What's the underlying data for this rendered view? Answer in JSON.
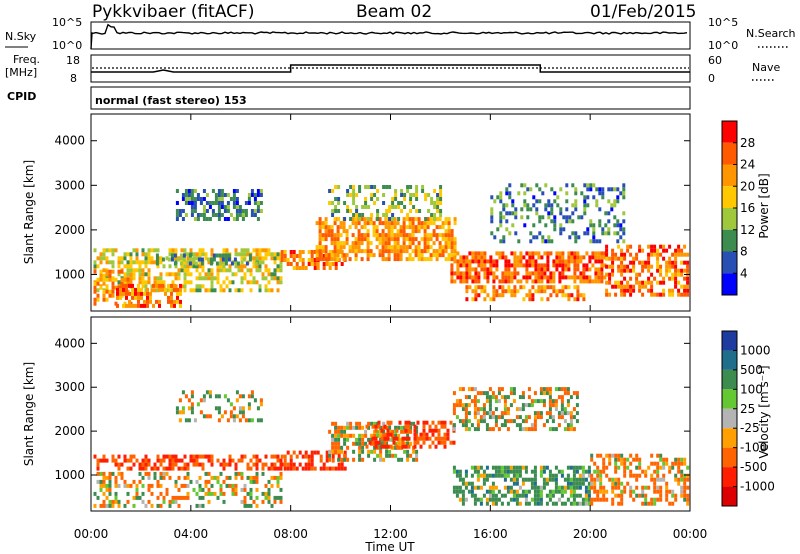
{
  "header": {
    "station": "Pykkvibaer (fitACF)",
    "beam": "Beam 02",
    "date": "01/Feb/2015"
  },
  "strips": {
    "nsky_label": "N.Sky",
    "nsky_ticks": [
      "10^5",
      "10^0"
    ],
    "nsearch_label": "N.Search",
    "nsearch_ticks": [
      "10^5",
      "10^0"
    ],
    "freq_label_1": "Freq.",
    "freq_label_2": "[MHz]",
    "freq_ticks": [
      "18",
      "8"
    ],
    "nave_label": "Nave",
    "nave_ticks": [
      "60",
      "0"
    ],
    "cpid_label": "CPID",
    "cpid_value": "normal (fast stereo) 153"
  },
  "icons": {
    "nsky_legend": "solid-line-legend",
    "nsearch_legend": "dotted-line-legend",
    "nave_legend": "dotted-line-legend"
  },
  "x_axis": {
    "label": "Time UT",
    "ticks": [
      "00:00",
      "04:00",
      "08:00",
      "12:00",
      "16:00",
      "20:00",
      "00:00"
    ]
  },
  "chart_data": [
    {
      "type": "heatmap",
      "panel": "power",
      "ylabel": "Slant Range [km]",
      "yticks": [
        "1000",
        "2000",
        "3000",
        "4000"
      ],
      "ylim": [
        180,
        4600
      ],
      "xlim_hours": [
        0,
        24
      ],
      "colorbar_label": "Power [dB]",
      "colorbar_ticks": [
        "28",
        "24",
        "20",
        "16",
        "12",
        "8",
        "4"
      ],
      "colorbar_colors": [
        "#ff0000",
        "#ff5a00",
        "#ff9600",
        "#ffc800",
        "#a0c83c",
        "#3c8c50",
        "#2850b4",
        "#0000ff"
      ],
      "regions": [
        {
          "t": [
            0.1,
            7.6
          ],
          "r": [
            600,
            1500
          ],
          "level": 17,
          "density": 0.55
        },
        {
          "t": [
            0.1,
            1.6
          ],
          "r": [
            300,
            1100
          ],
          "level": 22,
          "density": 0.6
        },
        {
          "t": [
            1.0,
            3.6
          ],
          "r": [
            250,
            700
          ],
          "level": 24,
          "density": 0.6
        },
        {
          "t": [
            2.6,
            6.6
          ],
          "r": [
            1200,
            1450
          ],
          "level": 10,
          "density": 0.5
        },
        {
          "t": [
            3.4,
            6.8
          ],
          "r": [
            2200,
            2900
          ],
          "level": 8,
          "density": 0.55
        },
        {
          "t": [
            7.6,
            10.2
          ],
          "r": [
            1100,
            1500
          ],
          "level": 23,
          "density": 0.7
        },
        {
          "t": [
            9.0,
            14.6
          ],
          "r": [
            1300,
            2200
          ],
          "level": 22,
          "density": 0.7
        },
        {
          "t": [
            9.5,
            14.0
          ],
          "r": [
            2200,
            3000
          ],
          "level": 13,
          "density": 0.4
        },
        {
          "t": [
            14.4,
            20.6
          ],
          "r": [
            800,
            1500
          ],
          "level": 26,
          "density": 0.7
        },
        {
          "t": [
            15.0,
            19.8
          ],
          "r": [
            400,
            700
          ],
          "level": 23,
          "density": 0.55
        },
        {
          "t": [
            16.0,
            21.4
          ],
          "r": [
            1700,
            3000
          ],
          "level": 9,
          "density": 0.3
        },
        {
          "t": [
            20.6,
            23.9
          ],
          "r": [
            500,
            1600
          ],
          "level": 25,
          "density": 0.55
        }
      ]
    },
    {
      "type": "heatmap",
      "panel": "velocity",
      "ylabel": "Slant Range [km]",
      "yticks": [
        "1000",
        "2000",
        "3000",
        "4000"
      ],
      "ylim": [
        180,
        4600
      ],
      "xlim_hours": [
        0,
        24
      ],
      "colorbar_label": "Velocity [m s⁻¹]",
      "colorbar_ticks": [
        "1000",
        "500",
        "100",
        "25",
        "-25",
        "-100",
        "-500",
        "-1000"
      ],
      "colorbar_colors": [
        "#1e3ca0",
        "#1e6e8c",
        "#3c8c50",
        "#64c832",
        "#b4b4b4",
        "#ffa000",
        "#ff6400",
        "#ff1e00",
        "#dc0000"
      ],
      "regions": [
        {
          "t": [
            0.1,
            7.6
          ],
          "r": [
            1100,
            1450
          ],
          "v": -300,
          "density": 0.55
        },
        {
          "t": [
            0.1,
            7.6
          ],
          "r": [
            250,
            1000
          ],
          "v": 0,
          "density": 0.35
        },
        {
          "t": [
            3.4,
            6.8
          ],
          "r": [
            2200,
            2900
          ],
          "v": 0,
          "density": 0.4
        },
        {
          "t": [
            7.6,
            10.2
          ],
          "r": [
            1100,
            1500
          ],
          "v": -400,
          "density": 0.6
        },
        {
          "t": [
            9.5,
            13.0
          ],
          "r": [
            1300,
            2200
          ],
          "v": 0,
          "density": 0.6
        },
        {
          "t": [
            11.0,
            14.5
          ],
          "r": [
            1600,
            2200
          ],
          "v": -300,
          "density": 0.45
        },
        {
          "t": [
            14.5,
            19.5
          ],
          "r": [
            2000,
            3000
          ],
          "v": 0,
          "density": 0.5
        },
        {
          "t": [
            14.5,
            20.0
          ],
          "r": [
            300,
            1200
          ],
          "v": 150,
          "density": 0.6
        },
        {
          "t": [
            20.0,
            23.9
          ],
          "r": [
            300,
            1400
          ],
          "v": -100,
          "density": 0.5
        }
      ]
    }
  ]
}
